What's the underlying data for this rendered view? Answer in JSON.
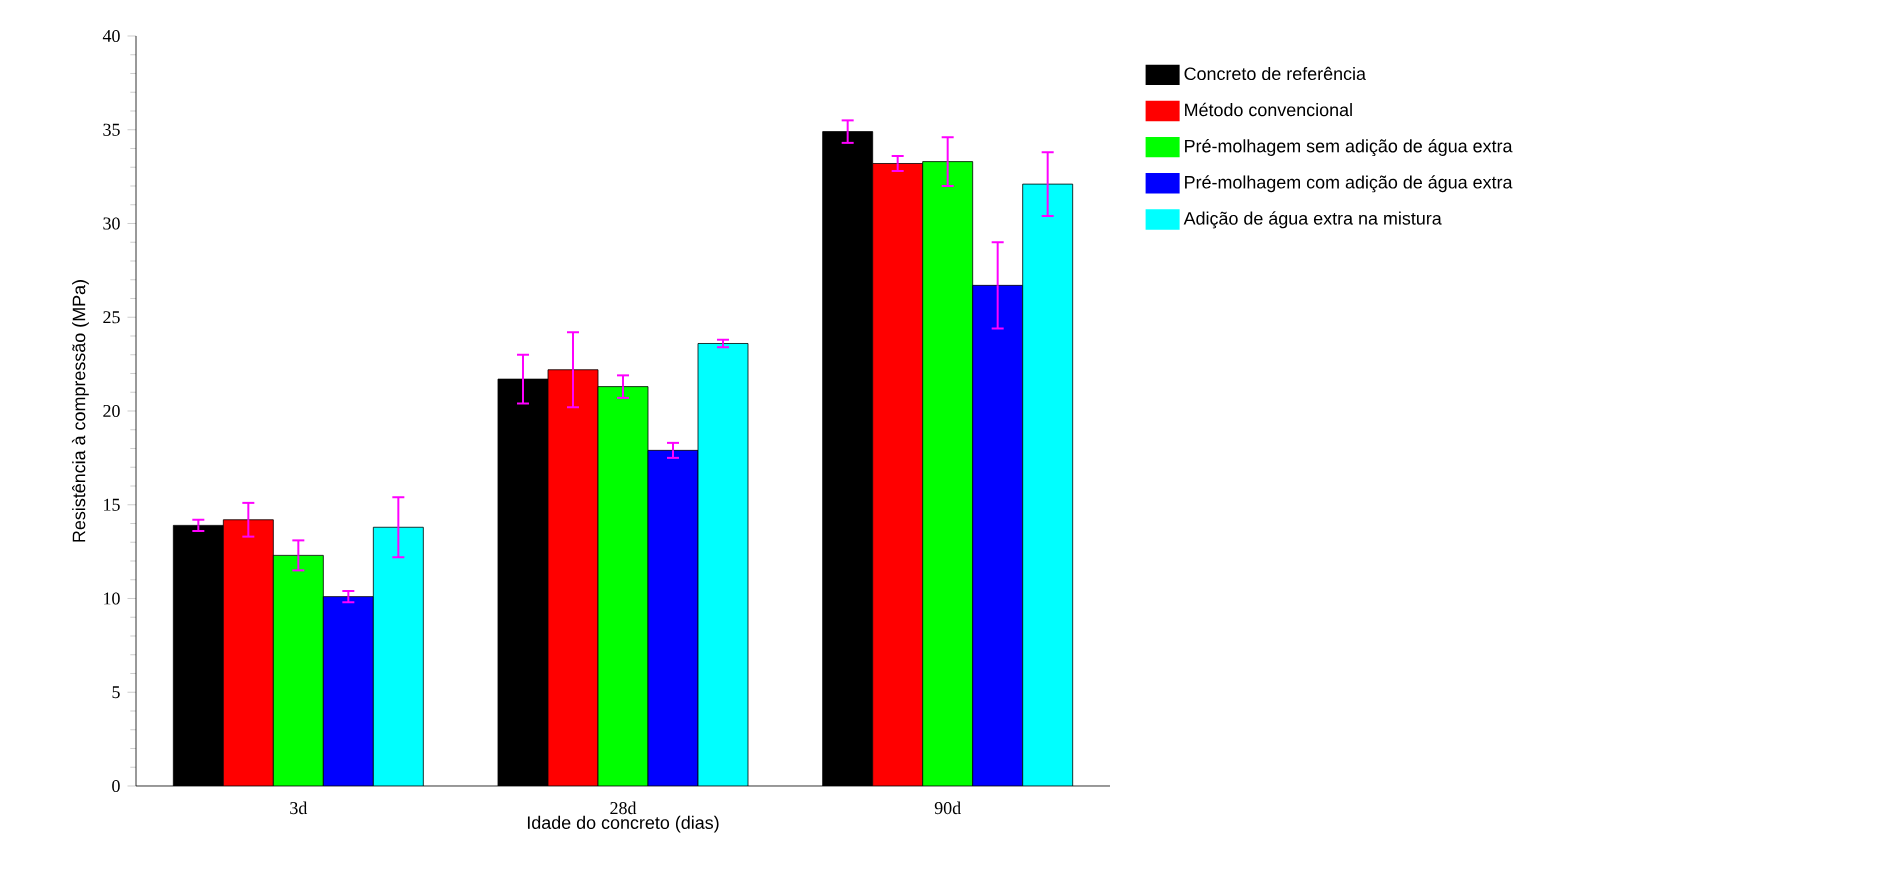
{
  "chart_data": {
    "type": "bar",
    "xlabel": "Idade do concreto (dias)",
    "ylabel": "Resistência à compressão (MPa)",
    "categories": [
      "3d",
      "28d",
      "90d"
    ],
    "series": [
      {
        "name": "Concreto de referência",
        "color": "#000000",
        "values": [
          13.9,
          21.7,
          34.9
        ],
        "errors": [
          0.3,
          1.3,
          0.6
        ]
      },
      {
        "name": "Método convencional",
        "color": "#ff0000",
        "values": [
          14.2,
          22.2,
          33.2
        ],
        "errors": [
          0.9,
          2.0,
          0.4
        ]
      },
      {
        "name": "Pré-molhagem sem adição de água extra",
        "color": "#00ff00",
        "values": [
          12.3,
          21.3,
          33.3
        ],
        "errors": [
          0.8,
          0.6,
          1.3
        ]
      },
      {
        "name": "Pré-molhagem com adição de água extra",
        "color": "#0000ff",
        "values": [
          10.1,
          17.9,
          26.7
        ],
        "errors": [
          0.3,
          0.4,
          2.3
        ]
      },
      {
        "name": "Adição de água extra na mistura",
        "color": "#00ffff",
        "values": [
          13.8,
          23.6,
          32.1
        ],
        "errors": [
          1.6,
          0.2,
          1.7
        ]
      }
    ],
    "ylim": [
      0,
      40
    ],
    "yticks": [
      0,
      5,
      10,
      15,
      20,
      25,
      30,
      35,
      40
    ],
    "grid": false,
    "legend": "right"
  }
}
